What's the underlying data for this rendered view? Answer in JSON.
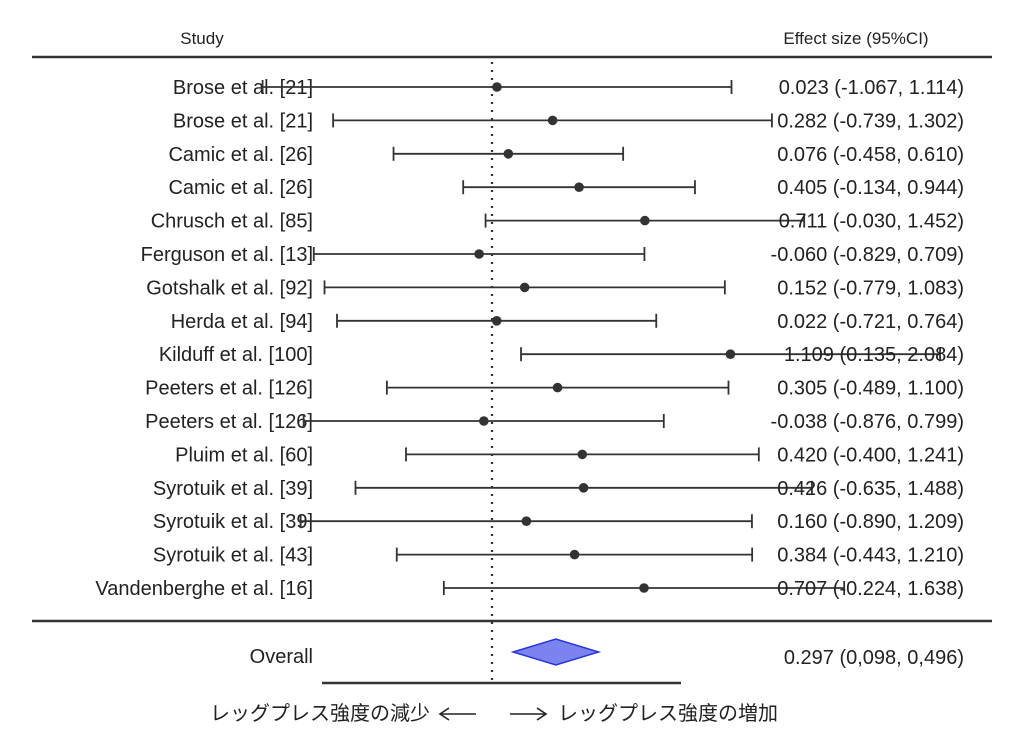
{
  "header": {
    "study_label": "Study",
    "effect_label": "Effect size (95%CI)"
  },
  "chart_data": {
    "type": "forest",
    "title": "",
    "xlabel": "",
    "null_line": 0,
    "studies": [
      {
        "name": "Brose et al. [21]",
        "effect": 0.023,
        "lower": -1.067,
        "upper": 1.114,
        "ci_text": "0.023 (-1.067, 1.114)"
      },
      {
        "name": "Brose et al. [21]",
        "effect": 0.282,
        "lower": -0.739,
        "upper": 1.302,
        "ci_text": "0.282 (-0.739, 1.302)"
      },
      {
        "name": "Camic et al. [26]",
        "effect": 0.076,
        "lower": -0.458,
        "upper": 0.61,
        "ci_text": "0.076 (-0.458, 0.610)"
      },
      {
        "name": "Camic et al. [26]",
        "effect": 0.405,
        "lower": -0.134,
        "upper": 0.944,
        "ci_text": "0.405 (-0.134, 0.944)"
      },
      {
        "name": "Chrusch et al. [85]",
        "effect": 0.711,
        "lower": -0.03,
        "upper": 1.452,
        "ci_text": "0.711 (-0.030, 1.452)"
      },
      {
        "name": "Ferguson et al. [13]",
        "effect": -0.06,
        "lower": -0.829,
        "upper": 0.709,
        "ci_text": "-0.060 (-0.829, 0.709)"
      },
      {
        "name": "Gotshalk et al. [92]",
        "effect": 0.152,
        "lower": -0.779,
        "upper": 1.083,
        "ci_text": "0.152 (-0.779, 1.083)"
      },
      {
        "name": "Herda et al. [94]",
        "effect": 0.022,
        "lower": -0.721,
        "upper": 0.764,
        "ci_text": "0.022 (-0.721, 0.764)"
      },
      {
        "name": "Kilduff et al. [100]",
        "effect": 1.109,
        "lower": 0.135,
        "upper": 2.084,
        "ci_text": "1.109 (0.135, 2.084)"
      },
      {
        "name": "Peeters et al. [126]",
        "effect": 0.305,
        "lower": -0.489,
        "upper": 1.1,
        "ci_text": "0.305 (-0.489, 1.100)"
      },
      {
        "name": "Peeters et al. [126]",
        "effect": -0.038,
        "lower": -0.876,
        "upper": 0.799,
        "ci_text": "-0.038 (-0.876, 0.799)"
      },
      {
        "name": "Pluim et al. [60]",
        "effect": 0.42,
        "lower": -0.4,
        "upper": 1.241,
        "ci_text": "0.420 (-0.400, 1.241)"
      },
      {
        "name": "Syrotuik et al. [39]",
        "effect": 0.426,
        "lower": -0.635,
        "upper": 1.488,
        "ci_text": "0.426 (-0.635, 1.488)"
      },
      {
        "name": "Syrotuik et al. [39]",
        "effect": 0.16,
        "lower": -0.89,
        "upper": 1.209,
        "ci_text": "0.160 (-0.890, 1.209)"
      },
      {
        "name": "Syrotuik et al. [43]",
        "effect": 0.384,
        "lower": -0.443,
        "upper": 1.21,
        "ci_text": "0.384 (-0.443, 1.210)"
      },
      {
        "name": "Vandenberghe et al. [16]",
        "effect": 0.707,
        "lower": -0.224,
        "upper": 1.638,
        "ci_text": "0.707 (-0.224, 1.638)"
      }
    ],
    "overall": {
      "name": "Overall",
      "effect": 0.297,
      "lower": 0.098,
      "upper": 0.496,
      "ci_text": "0.297 (0,098, 0,496)"
    },
    "direction_labels": {
      "left": "レッグプレス強度の減少",
      "right": "レッグプレス強度の増加"
    },
    "colors": {
      "diamond_fill": "#7b83f0",
      "diamond_stroke": "#2a35d6",
      "ink": "#333333"
    }
  }
}
